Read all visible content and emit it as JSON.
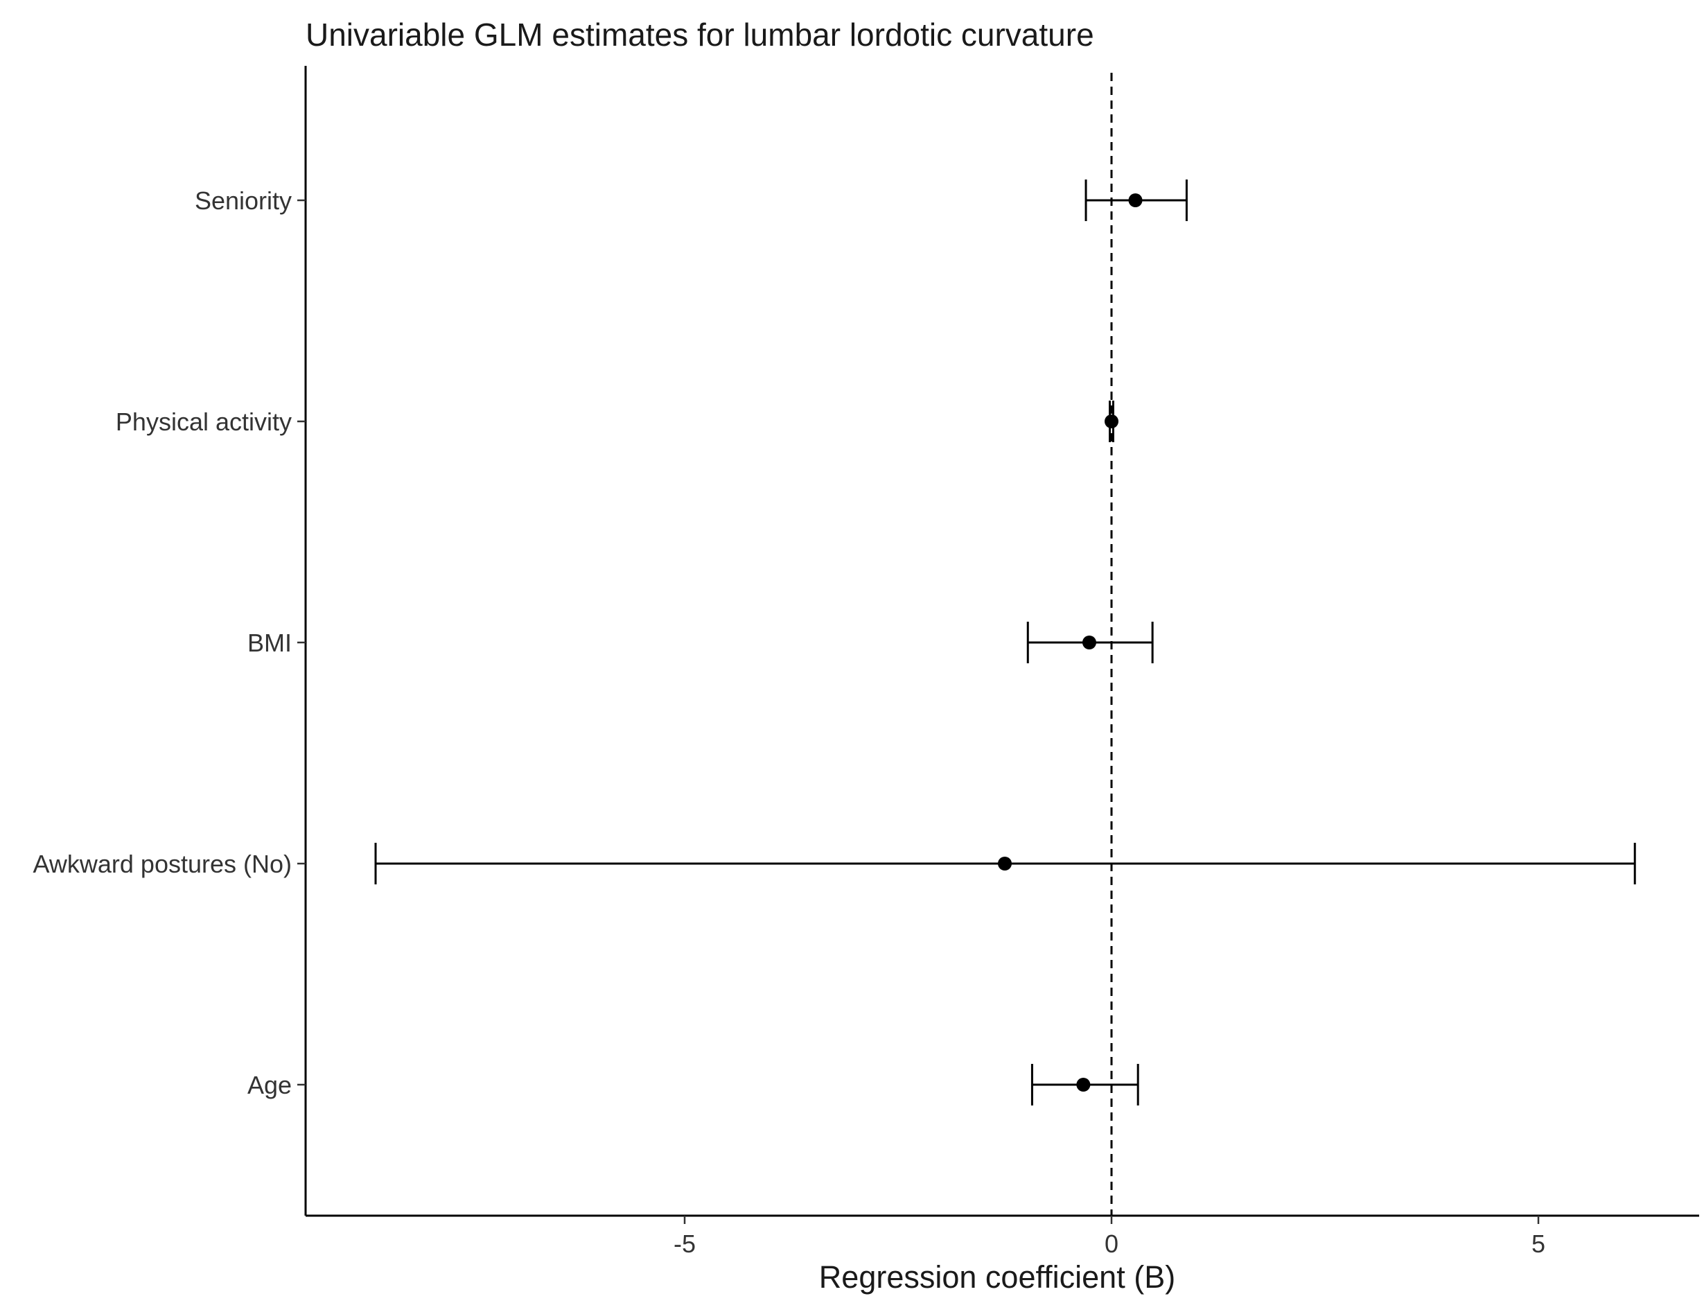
{
  "chart_data": {
    "type": "forest",
    "title": "Univariable GLM estimates for lumbar lordotic curvature",
    "xlabel": "Regression coefficient (B)",
    "ylabel": "",
    "xlim": [
      -9.1,
      7.1
    ],
    "xticks": [
      {
        "value": -5,
        "label": "-5"
      },
      {
        "value": 0,
        "label": "0"
      },
      {
        "value": 5,
        "label": "5"
      }
    ],
    "reference_line": {
      "value": 0,
      "style": "dashed"
    },
    "grid": false,
    "legend": "none",
    "categories": [
      "Seniority",
      "Physical activity",
      "BMI",
      "Awkward postures (No)",
      "Age"
    ],
    "series": [
      {
        "points": [
          {
            "label": "Seniority",
            "estimate": 0.28,
            "lower": -0.3,
            "upper": 0.88
          },
          {
            "label": "Physical activity",
            "estimate": 0.0,
            "lower": -0.02,
            "upper": 0.02
          },
          {
            "label": "BMI",
            "estimate": -0.26,
            "lower": -0.98,
            "upper": 0.48
          },
          {
            "label": "Awkward postures (No)",
            "estimate": -1.25,
            "lower": -8.62,
            "upper": 6.13
          },
          {
            "label": "Age",
            "estimate": -0.33,
            "lower": -0.93,
            "upper": 0.31
          }
        ]
      }
    ]
  }
}
